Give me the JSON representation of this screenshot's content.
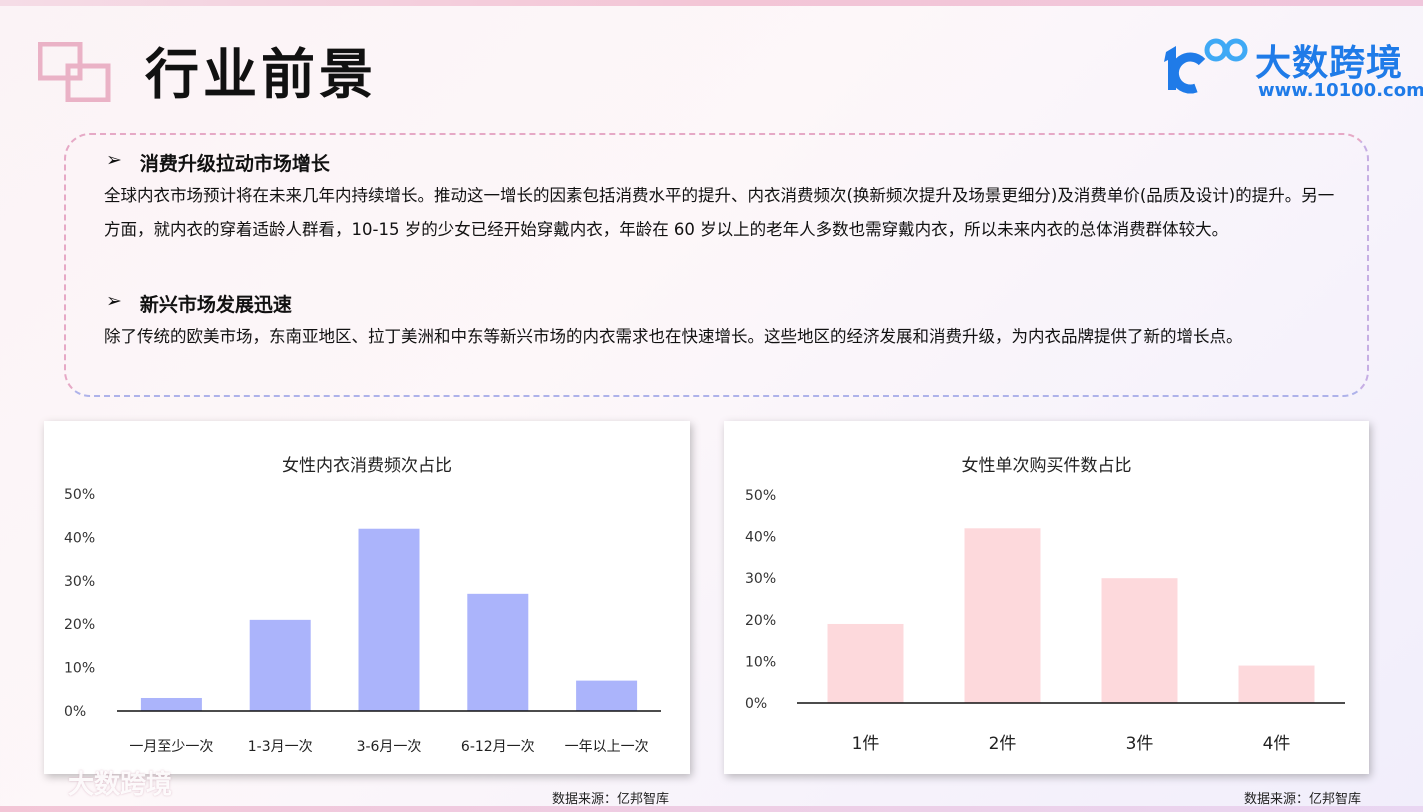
{
  "header": {
    "title": "行业前景",
    "logo_name": "大数跨境",
    "logo_url": "www.10100.com"
  },
  "sections": [
    {
      "heading": "消费升级拉动市场增长",
      "text": "全球内衣市场预计将在未来几年内持续增长。推动这一增长的因素包括消费水平的提升、内衣消费频次(换新频次提升及场景更细分)及消费单价(品质及设计)的提升。另一方面，就内衣的穿着适龄人群看，10-15 岁的少女已经开始穿戴内衣，年龄在 60 岁以上的老年人多数也需穿戴内衣，所以未来内衣的总体消费群体较大。"
    },
    {
      "heading": "新兴市场发展迅速",
      "text": "除了传统的欧美市场，东南亚地区、拉丁美洲和中东等新兴市场的内衣需求也在快速增长。这些地区的经济发展和消费升级，为内衣品牌提供了新的增长点。"
    }
  ],
  "bullet": "➢",
  "watermark": "大数跨境",
  "chart_data": [
    {
      "type": "bar",
      "title": "女性内衣消费频次占比",
      "categories": [
        "一月至少一次",
        "1-3月一次",
        "3-6月一次",
        "6-12月一次",
        "一年以上一次"
      ],
      "values": [
        3,
        21,
        42,
        27,
        7
      ],
      "ylim": [
        0,
        50
      ],
      "yticks": [
        "0%",
        "10%",
        "20%",
        "30%",
        "40%",
        "50%"
      ],
      "color": "#abb4fb",
      "grid": false,
      "source": "数据来源：亿邦智库"
    },
    {
      "type": "bar",
      "title": "女性单次购买件数占比",
      "categories": [
        "1件",
        "2件",
        "3件",
        "4件"
      ],
      "values": [
        19,
        42,
        30,
        9
      ],
      "ylim": [
        0,
        50
      ],
      "yticks": [
        "0%",
        "10%",
        "20%",
        "30%",
        "40%",
        "50%"
      ],
      "color": "#fdd9dc",
      "grid": false,
      "source": "数据来源：亿邦智库"
    }
  ]
}
